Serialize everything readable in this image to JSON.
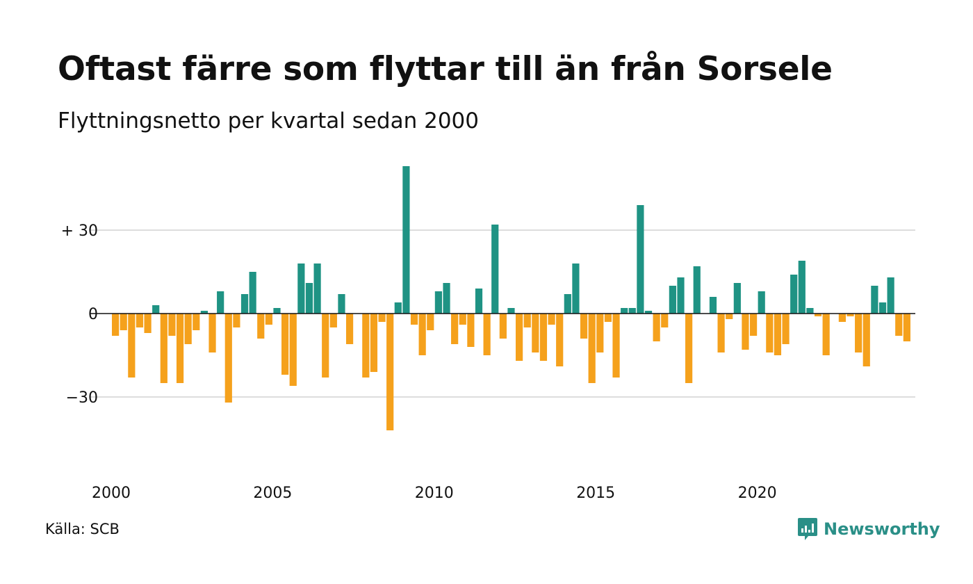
{
  "title": "Oftast färre som flyttar till än från Sorsele",
  "subtitle": "Flyttningsnetto per kvartal sedan 2000",
  "source": "Källa: SCB",
  "brand": {
    "name": "Newsworthy",
    "icon": "newsworthy-logo-icon",
    "color": "#2a8f87"
  },
  "chart_data": {
    "type": "bar",
    "start_year": 2000,
    "periods_per_year": 4,
    "ylim": [
      -42,
      53
    ],
    "y_ticks": [
      30,
      0,
      -30
    ],
    "y_tick_labels": [
      "+ 30",
      "0",
      "−30"
    ],
    "x_tick_years": [
      2000,
      2005,
      2010,
      2015,
      2020
    ],
    "x_tick_labels": [
      "2000",
      "2005",
      "2010",
      "2015",
      "2020"
    ],
    "positive_color": "#1f9384",
    "negative_color": "#f5a11c",
    "grid": true,
    "values": [
      -8,
      -6,
      -23,
      -5,
      -7,
      3,
      -25,
      -8,
      -25,
      -11,
      -6,
      1,
      -14,
      8,
      -32,
      -5,
      7,
      15,
      -9,
      -4,
      2,
      -22,
      -26,
      18,
      11,
      18,
      -23,
      -5,
      7,
      -11,
      0,
      -23,
      -21,
      -3,
      -42,
      4,
      53,
      -4,
      -15,
      -6,
      8,
      11,
      -11,
      -4,
      -12,
      9,
      -15,
      32,
      -9,
      2,
      -17,
      -5,
      -14,
      -17,
      -4,
      -19,
      7,
      18,
      -9,
      -25,
      -14,
      -3,
      -23,
      2,
      2,
      39,
      1,
      -10,
      -5,
      10,
      13,
      -25,
      17,
      0,
      6,
      -14,
      -2,
      11,
      -13,
      -8,
      8,
      -14,
      -15,
      -11,
      14,
      19,
      2,
      -1,
      -15,
      0,
      -3,
      -1,
      -14,
      -19,
      10,
      4,
      13,
      -8,
      -10
    ]
  }
}
